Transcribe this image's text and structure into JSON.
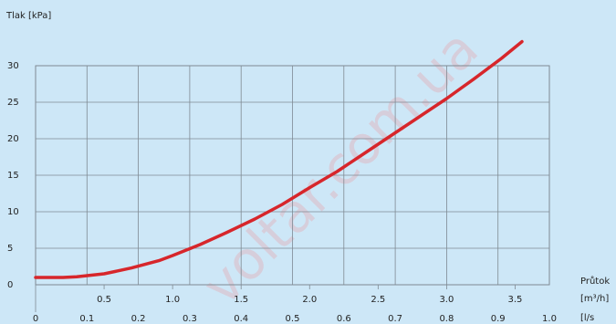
{
  "watermark": "voltar.com.ua",
  "chart_data": {
    "type": "line",
    "y_axis": {
      "title": "Tlak  [kPa]",
      "ticks": [
        "0",
        "5",
        "10",
        "15",
        "20",
        "25",
        "30"
      ],
      "range": [
        0,
        30
      ]
    },
    "x_axis_top": {
      "ticks": [
        "0.5",
        "1.0",
        "1.5",
        "2.0",
        "2.5",
        "3.0",
        "3.5"
      ],
      "unit": "[m³/h]",
      "range": [
        0,
        3.75
      ]
    },
    "x_axis_bottom": {
      "ticks": [
        "0",
        "0.1",
        "0.2",
        "0.3",
        "0.4",
        "0.5",
        "0.6",
        "0.7",
        "0.8",
        "0.9",
        "1.0"
      ],
      "unit": "[l/s",
      "range": [
        0,
        1.0
      ]
    },
    "x_axis_title": "Průtok",
    "grid": true,
    "series": [
      {
        "color": "#d7262b",
        "x": [
          0.0,
          0.1,
          0.2,
          0.3,
          0.4,
          0.5,
          0.6,
          0.7,
          0.8,
          0.9,
          1.0,
          1.2,
          1.4,
          1.6,
          1.8,
          2.0,
          2.2,
          2.4,
          2.6,
          2.8,
          3.0,
          3.2,
          3.4,
          3.55
        ],
        "y": [
          1.0,
          1.0,
          1.0,
          1.1,
          1.3,
          1.5,
          1.9,
          2.3,
          2.8,
          3.3,
          4.0,
          5.5,
          7.2,
          9.0,
          11.0,
          13.3,
          15.5,
          18.0,
          20.5,
          23.0,
          25.5,
          28.2,
          31.0,
          33.3
        ]
      }
    ]
  }
}
